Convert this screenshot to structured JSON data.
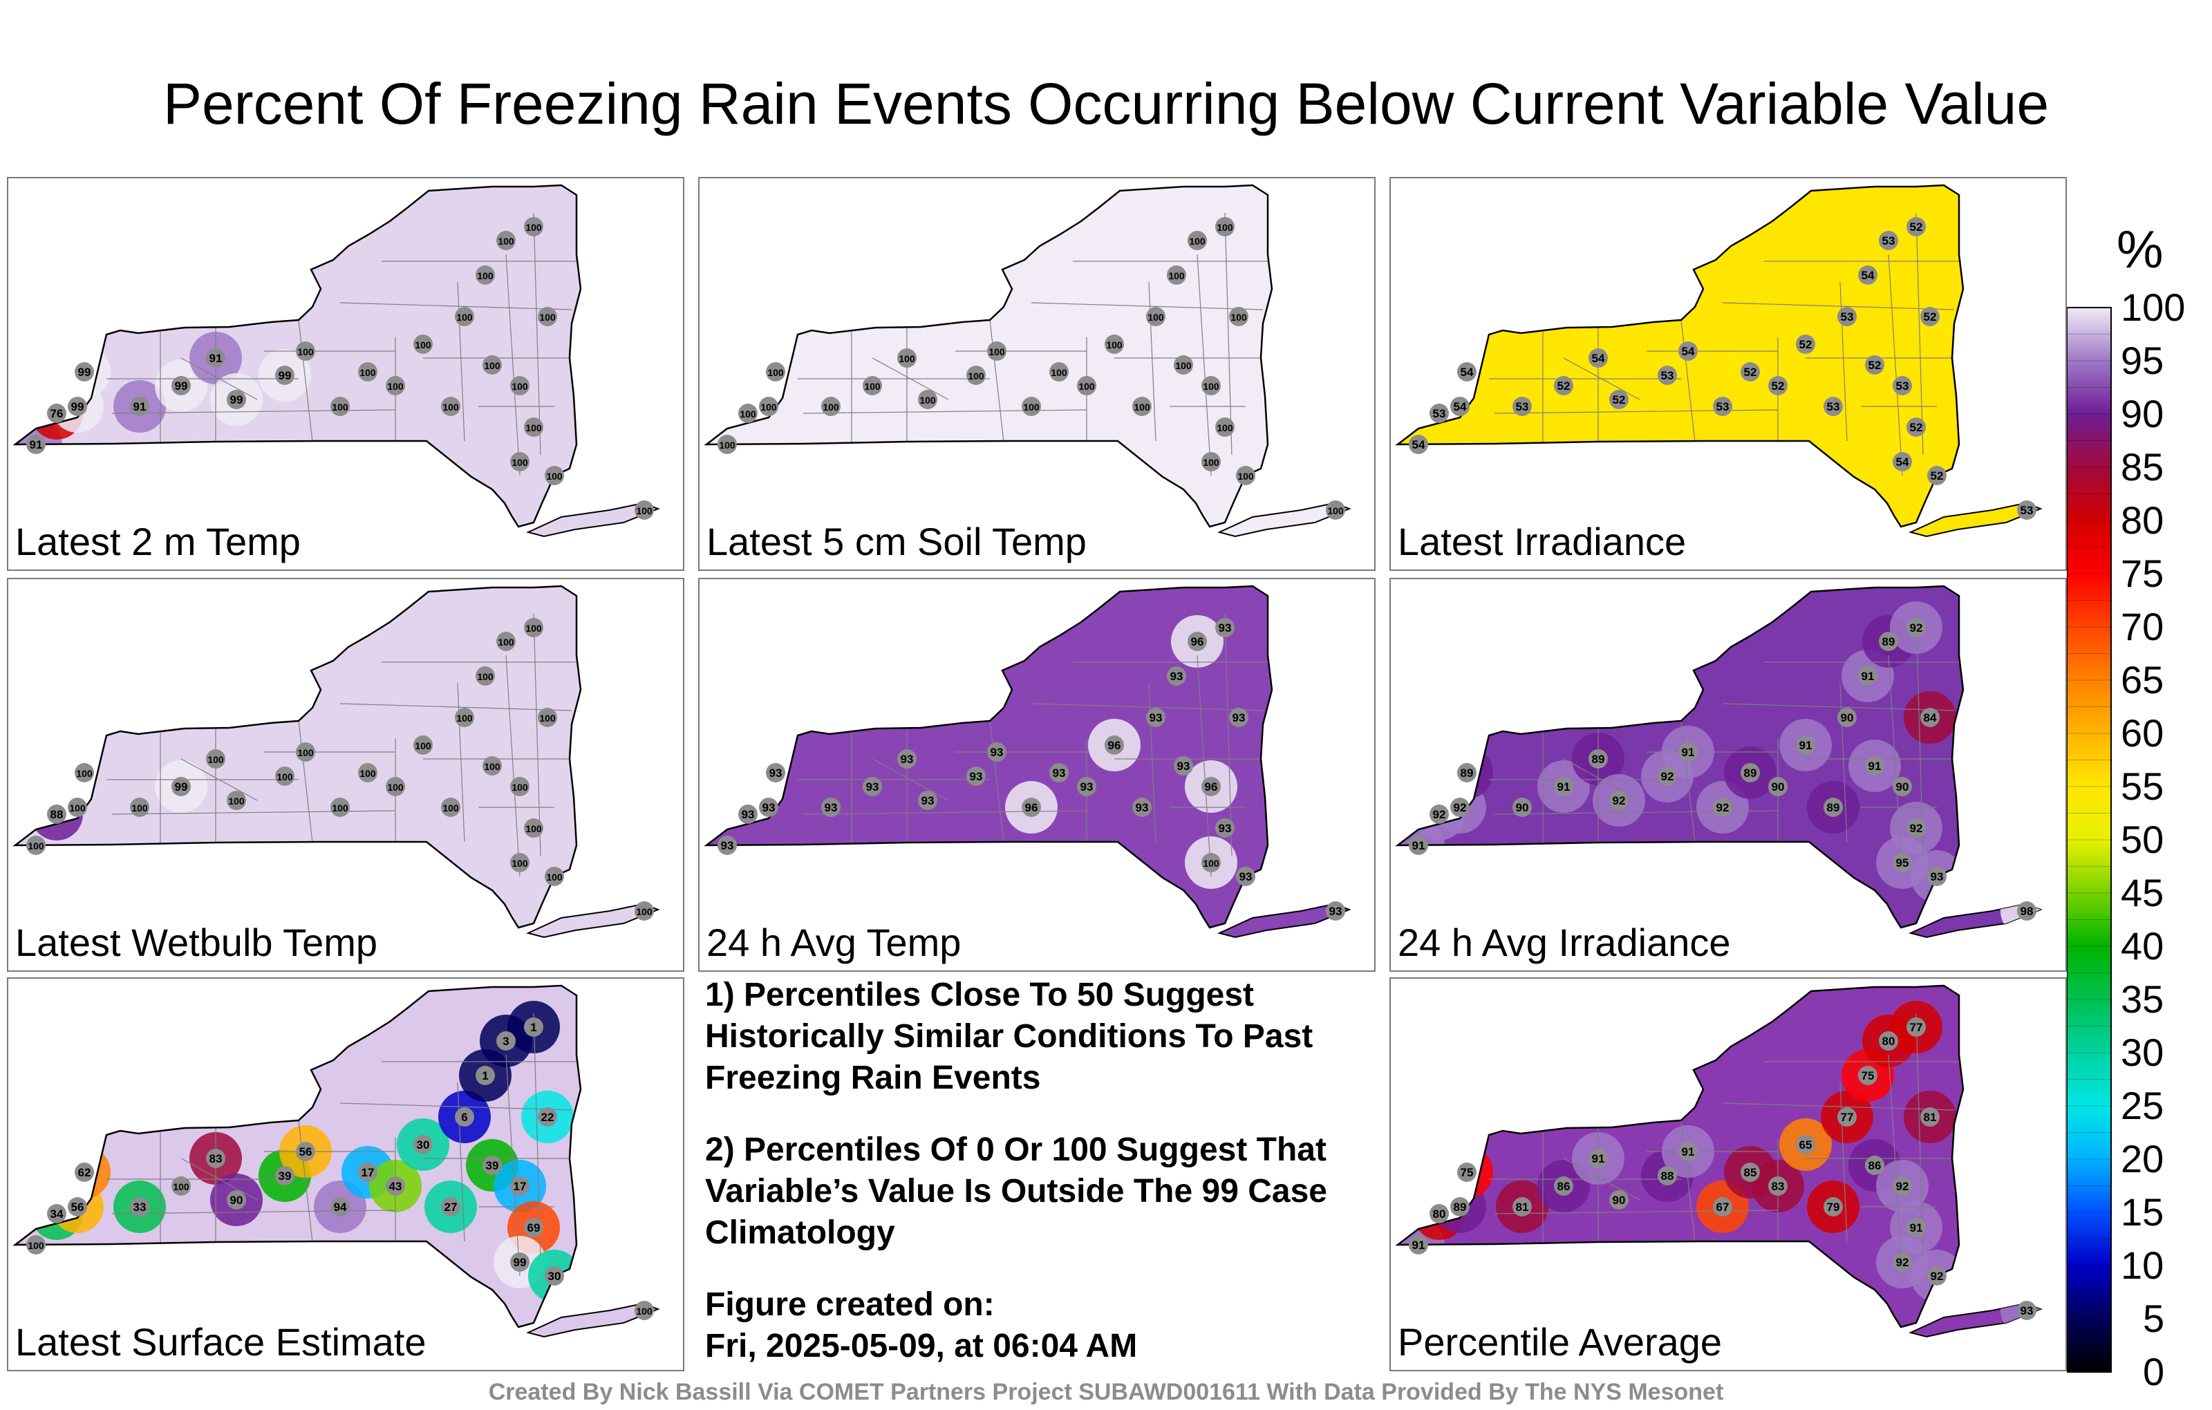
{
  "title": "Percent Of Freezing Rain Events Occurring Below Current Variable Value",
  "colors": {
    "panel_border": "#7a7a7a",
    "station_fill": "#8c8c8c",
    "state_outline": "#000000",
    "county_lines": "#7f7f7f"
  },
  "panels": [
    {
      "id": "temp2m",
      "label": "Latest 2 m Temp",
      "base_value": 100,
      "fill": "#e3d4ee",
      "stations": [
        91,
        76,
        99,
        99,
        91,
        99,
        91,
        99,
        99,
        100,
        100,
        100,
        100,
        100,
        100,
        100,
        100,
        100,
        100,
        100,
        100,
        100,
        100,
        100,
        100,
        100
      ]
    },
    {
      "id": "soil5cm",
      "label": "Latest 5 cm Soil Temp",
      "base_value": 100,
      "fill": "#f1ecf6",
      "stations": [
        100,
        100,
        100,
        100,
        100,
        100,
        100,
        100,
        100,
        100,
        100,
        100,
        100,
        100,
        100,
        100,
        100,
        100,
        100,
        100,
        100,
        100,
        100,
        100,
        100,
        100
      ]
    },
    {
      "id": "irradiance",
      "label": "Latest Irradiance",
      "base_value": 53,
      "fill": "#ffe600",
      "stations": [
        54,
        53,
        54,
        54,
        53,
        52,
        54,
        52,
        53,
        54,
        53,
        52,
        52,
        52,
        53,
        53,
        54,
        53,
        52,
        52,
        52,
        53,
        52,
        54,
        52,
        53
      ]
    },
    {
      "id": "wetbulb",
      "label": "Latest Wetbulb Temp",
      "base_value": 100,
      "fill": "#e3d4ee",
      "stations": [
        100,
        88,
        100,
        100,
        100,
        99,
        100,
        100,
        100,
        100,
        100,
        100,
        100,
        100,
        100,
        100,
        100,
        100,
        100,
        100,
        100,
        100,
        100,
        100,
        100,
        100
      ]
    },
    {
      "id": "avgtemp24",
      "label": "24 h Avg Temp",
      "base_value": 93,
      "fill": "#8a45b5",
      "stations": [
        93,
        93,
        93,
        93,
        93,
        93,
        93,
        93,
        93,
        93,
        96,
        93,
        93,
        96,
        93,
        93,
        93,
        96,
        93,
        93,
        93,
        96,
        93,
        100,
        93,
        93
      ]
    },
    {
      "id": "avgirr24",
      "label": "24 h Avg Irradiance",
      "base_value": 90,
      "fill": "#7a38aa",
      "stations": [
        91,
        92,
        92,
        89,
        90,
        91,
        89,
        92,
        92,
        91,
        92,
        89,
        90,
        91,
        89,
        90,
        91,
        89,
        92,
        84,
        91,
        90,
        92,
        95,
        93,
        98
      ]
    },
    {
      "id": "surface",
      "label": "Latest Surface Estimate",
      "base_value": 100,
      "fill": "#dcc8ea",
      "stations": [
        100,
        34,
        56,
        62,
        33,
        100,
        83,
        90,
        39,
        56,
        94,
        17,
        43,
        30,
        27,
        6,
        1,
        3,
        1,
        22,
        39,
        17,
        69,
        99,
        30,
        100
      ]
    },
    {
      "id": "average",
      "label": "Percentile Average",
      "base_value": 90,
      "fill": "#8a3ab0",
      "stations": [
        91,
        80,
        89,
        75,
        81,
        86,
        91,
        90,
        88,
        91,
        67,
        85,
        83,
        65,
        79,
        77,
        75,
        80,
        77,
        81,
        86,
        92,
        91,
        92,
        92,
        93
      ]
    }
  ],
  "notes": [
    "1) Percentiles Close To 50 Suggest Historically Similar Conditions To Past Freezing Rain Events",
    "2) Percentiles Of 0 Or 100 Suggest That Variable’s Value Is Outside The 99 Case Climatology"
  ],
  "figure_created_label": "Figure created on:",
  "figure_created_value": "Fri, 2025-05-09, at 06:04 AM",
  "colorbar": {
    "unit": "%",
    "min": 0,
    "max": 100,
    "ticks": [
      0,
      5,
      10,
      15,
      20,
      25,
      30,
      35,
      40,
      45,
      50,
      55,
      60,
      65,
      70,
      75,
      80,
      85,
      90,
      95,
      100
    ],
    "stops": [
      {
        "v": 0,
        "c": "#000000"
      },
      {
        "v": 5,
        "c": "#00005a"
      },
      {
        "v": 10,
        "c": "#0000c8"
      },
      {
        "v": 15,
        "c": "#0050ff"
      },
      {
        "v": 20,
        "c": "#00b4ff"
      },
      {
        "v": 25,
        "c": "#00e6e6"
      },
      {
        "v": 30,
        "c": "#00d2a0"
      },
      {
        "v": 35,
        "c": "#00c050"
      },
      {
        "v": 40,
        "c": "#00b400"
      },
      {
        "v": 45,
        "c": "#78d200"
      },
      {
        "v": 50,
        "c": "#e6f000"
      },
      {
        "v": 55,
        "c": "#ffe600"
      },
      {
        "v": 60,
        "c": "#ffb400"
      },
      {
        "v": 65,
        "c": "#ff8200"
      },
      {
        "v": 70,
        "c": "#ff4600"
      },
      {
        "v": 75,
        "c": "#ff0000"
      },
      {
        "v": 80,
        "c": "#d20000"
      },
      {
        "v": 85,
        "c": "#a00a3c"
      },
      {
        "v": 90,
        "c": "#6e1e96"
      },
      {
        "v": 95,
        "c": "#9f78c8"
      },
      {
        "v": 100,
        "c": "#f0ebf6"
      }
    ]
  },
  "credit": "Created By Nick Bassill Via COMET Partners Project SUBAWD001611 With Data Provided By The NYS Mesonet"
}
